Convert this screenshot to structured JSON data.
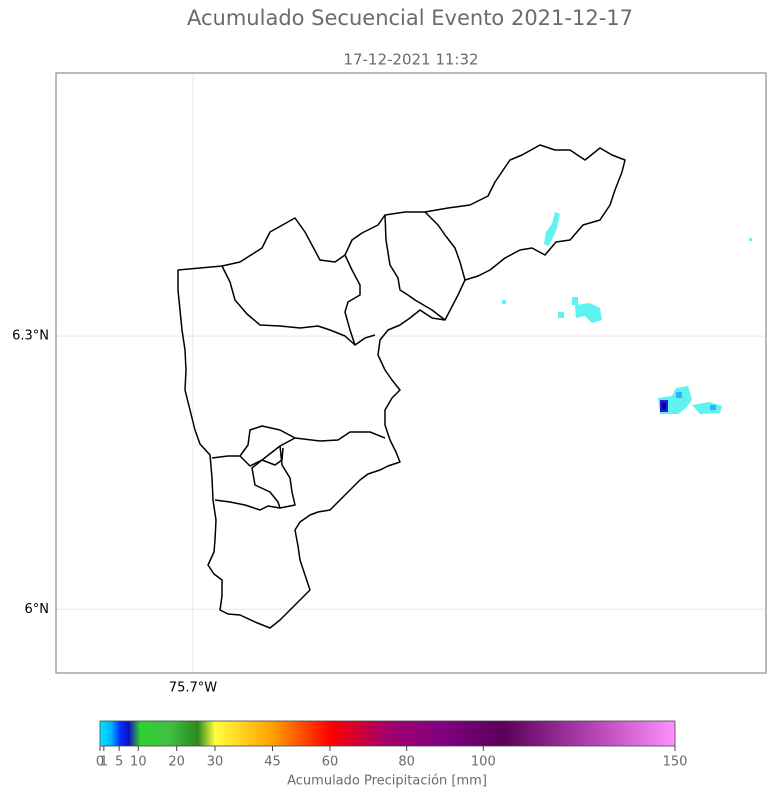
{
  "chart_data": {
    "type": "map",
    "title": "Acumulado Secuencial Evento 2021-12-17",
    "subtitle": "17-12-2021 11:32",
    "xlim": [
      -75.8505,
      -75.0703
    ],
    "ylim": [
      5.93,
      6.589
    ],
    "xticks": [
      {
        "value": -75.7,
        "label": "75.7°W"
      }
    ],
    "yticks": [
      {
        "value": 6.3,
        "label": "6.3°N"
      },
      {
        "value": 6.0,
        "label": "6°N"
      }
    ],
    "grid": true,
    "colorbar": {
      "label": "Acumulado Precipitación [mm]",
      "lim": [
        0,
        150
      ],
      "ticks": [
        0,
        1,
        5,
        10,
        20,
        30,
        45,
        60,
        80,
        100,
        150
      ]
    }
  }
}
